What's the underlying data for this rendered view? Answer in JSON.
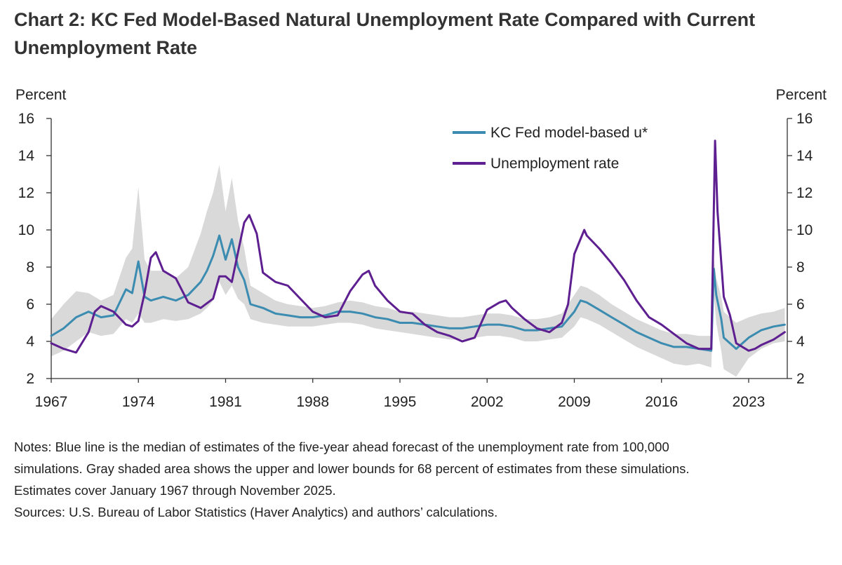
{
  "title": "Chart 2: KC Fed Model-Based Natural Unemployment Rate Compared with Current Unemployment Rate",
  "colors": {
    "ustar": "#3b8cb0",
    "unemployment": "#5e1f91",
    "band": "#d9d9d9"
  },
  "chart_data": {
    "type": "line",
    "ylabel_left": "Percent",
    "ylabel_right": "Percent",
    "ylim": [
      2,
      16
    ],
    "yticks": [
      2,
      4,
      6,
      8,
      10,
      12,
      14,
      16
    ],
    "xlim": [
      1967,
      2026.1
    ],
    "xticks": [
      1967,
      1974,
      1981,
      1988,
      1995,
      2002,
      2009,
      2016,
      2023
    ],
    "xtick_labels": [
      "1967",
      "1974",
      "1981",
      "1988",
      "1995",
      "2002",
      "2009",
      "2016",
      "2023"
    ],
    "legend": [
      "KC Fed model-based u*",
      "Unemployment rate"
    ],
    "series": [
      {
        "name": "KC Fed model-based u*",
        "x": [
          1967,
          1968,
          1969,
          1970,
          1971,
          1972,
          1973,
          1973.5,
          1974,
          1974.5,
          1975,
          1976,
          1977,
          1978,
          1979,
          1979.5,
          1980,
          1980.5,
          1981,
          1981.5,
          1982,
          1982.5,
          1983,
          1984,
          1985,
          1986,
          1987,
          1988,
          1989,
          1990,
          1991,
          1992,
          1993,
          1994,
          1995,
          1996,
          1997,
          1998,
          1999,
          2000,
          2001,
          2002,
          2003,
          2004,
          2005,
          2006,
          2007,
          2008,
          2009,
          2009.5,
          2010,
          2011,
          2012,
          2013,
          2014,
          2015,
          2016,
          2017,
          2018,
          2019,
          2020.0,
          2020.2,
          2020.4,
          2020.8,
          2021,
          2022,
          2023,
          2024,
          2025,
          2025.9
        ],
        "values": [
          4.3,
          4.7,
          5.3,
          5.6,
          5.3,
          5.4,
          6.8,
          6.6,
          8.3,
          6.4,
          6.2,
          6.4,
          6.2,
          6.5,
          7.2,
          7.8,
          8.6,
          9.7,
          8.4,
          9.5,
          8.0,
          7.3,
          6.0,
          5.8,
          5.5,
          5.4,
          5.3,
          5.3,
          5.4,
          5.6,
          5.6,
          5.5,
          5.3,
          5.2,
          5.0,
          5.0,
          4.9,
          4.8,
          4.7,
          4.7,
          4.8,
          4.9,
          4.9,
          4.8,
          4.6,
          4.6,
          4.7,
          4.8,
          5.6,
          6.2,
          6.1,
          5.7,
          5.3,
          4.9,
          4.5,
          4.2,
          3.9,
          3.7,
          3.7,
          3.6,
          3.5,
          7.9,
          6.5,
          5.2,
          4.2,
          3.6,
          4.2,
          4.6,
          4.8,
          4.9
        ]
      },
      {
        "name": "Unemployment rate",
        "x": [
          1967,
          1968,
          1969,
          1970,
          1970.5,
          1971,
          1972,
          1973,
          1973.5,
          1974,
          1974.5,
          1975,
          1975.4,
          1976,
          1977,
          1978,
          1979,
          1980,
          1980.5,
          1981,
          1981.5,
          1982,
          1982.5,
          1982.9,
          1983.5,
          1984,
          1985,
          1986,
          1987,
          1988,
          1989,
          1990,
          1991,
          1992,
          1992.5,
          1993,
          1994,
          1995,
          1996,
          1997,
          1998,
          1999,
          2000,
          2001,
          2002,
          2003,
          2003.5,
          2004,
          2005,
          2006,
          2007,
          2008,
          2008.5,
          2009,
          2009.8,
          2010,
          2011,
          2012,
          2013,
          2014,
          2015,
          2016,
          2017,
          2018,
          2019,
          2020.0,
          2020.3,
          2020.5,
          2021,
          2021.5,
          2022,
          2023,
          2023.5,
          2024,
          2025,
          2025.9
        ],
        "values": [
          3.9,
          3.6,
          3.4,
          4.5,
          5.6,
          5.9,
          5.6,
          4.9,
          4.8,
          5.1,
          6.6,
          8.5,
          8.8,
          7.8,
          7.4,
          6.1,
          5.8,
          6.3,
          7.5,
          7.5,
          7.2,
          8.8,
          10.4,
          10.8,
          9.8,
          7.7,
          7.2,
          7.0,
          6.3,
          5.6,
          5.3,
          5.4,
          6.7,
          7.6,
          7.8,
          7.0,
          6.2,
          5.6,
          5.5,
          4.9,
          4.5,
          4.3,
          4.0,
          4.2,
          5.7,
          6.1,
          6.2,
          5.8,
          5.2,
          4.7,
          4.5,
          5.0,
          6.0,
          8.7,
          10.0,
          9.7,
          9.0,
          8.2,
          7.3,
          6.2,
          5.3,
          4.9,
          4.4,
          3.9,
          3.6,
          3.6,
          14.8,
          11.0,
          6.4,
          5.4,
          3.9,
          3.5,
          3.6,
          3.8,
          4.1,
          4.5
        ]
      }
    ],
    "band": {
      "name": "68 percent bounds",
      "x": [
        1967,
        1968,
        1969,
        1970,
        1971,
        1972,
        1973,
        1973.5,
        1974,
        1974.5,
        1975,
        1976,
        1977,
        1978,
        1979,
        1979.5,
        1980,
        1980.5,
        1981,
        1981.5,
        1982,
        1982.5,
        1983,
        1984,
        1985,
        1986,
        1987,
        1988,
        1989,
        1990,
        1991,
        1992,
        1993,
        1994,
        1995,
        1996,
        1997,
        1998,
        1999,
        2000,
        2001,
        2002,
        2003,
        2004,
        2005,
        2006,
        2007,
        2008,
        2009,
        2009.5,
        2010,
        2011,
        2012,
        2013,
        2014,
        2015,
        2016,
        2017,
        2018,
        2019,
        2020.0,
        2020.2,
        2020.4,
        2020.8,
        2021,
        2022,
        2023,
        2024,
        2025,
        2025.9
      ],
      "upper": [
        5.2,
        6.0,
        6.7,
        6.6,
        6.2,
        6.5,
        8.5,
        9.0,
        12.3,
        8.4,
        7.8,
        7.8,
        7.4,
        8.0,
        9.8,
        11.0,
        12.0,
        13.5,
        11.0,
        12.8,
        10.5,
        9.0,
        7.0,
        6.6,
        6.2,
        6.0,
        5.9,
        5.8,
        5.9,
        6.1,
        6.2,
        6.1,
        5.9,
        5.8,
        5.6,
        5.6,
        5.5,
        5.4,
        5.3,
        5.3,
        5.4,
        5.5,
        5.5,
        5.4,
        5.2,
        5.2,
        5.3,
        5.5,
        6.5,
        7.0,
        6.9,
        6.5,
        6.0,
        5.6,
        5.2,
        4.9,
        4.6,
        4.4,
        4.4,
        4.3,
        4.3,
        8.5,
        7.4,
        6.4,
        5.6,
        5.0,
        5.3,
        5.5,
        5.6,
        5.8
      ],
      "lower": [
        3.2,
        3.5,
        4.0,
        4.5,
        4.3,
        4.4,
        5.2,
        5.0,
        5.5,
        5.0,
        5.0,
        5.2,
        5.1,
        5.2,
        5.5,
        5.8,
        6.2,
        7.2,
        6.5,
        7.0,
        6.3,
        6.0,
        5.2,
        5.0,
        4.9,
        4.8,
        4.8,
        4.8,
        4.9,
        5.0,
        5.0,
        4.9,
        4.7,
        4.6,
        4.5,
        4.4,
        4.3,
        4.2,
        4.1,
        4.1,
        4.2,
        4.3,
        4.3,
        4.2,
        4.0,
        4.0,
        4.1,
        4.2,
        4.8,
        5.3,
        5.2,
        4.9,
        4.5,
        4.1,
        3.7,
        3.4,
        3.1,
        2.8,
        2.7,
        2.8,
        2.6,
        6.5,
        5.0,
        3.5,
        2.5,
        2.1,
        3.1,
        3.6,
        3.9,
        4.0
      ]
    }
  },
  "notes": [
    "Notes: Blue line is the median of estimates of the five-year ahead forecast of the unemployment rate from 100,000",
    "simulations. Gray shaded area shows the upper and lower bounds for 68 percent of estimates from these simulations.",
    "Estimates cover January 1967 through November 2025.",
    "Sources: U.S. Bureau of Labor Statistics (Haver Analytics) and authors’ calculations."
  ]
}
